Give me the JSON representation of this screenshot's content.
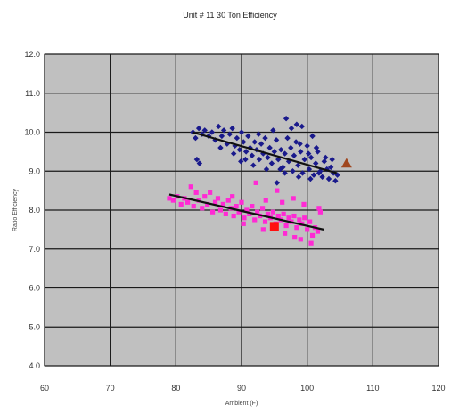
{
  "chart_data": {
    "type": "scatter",
    "title": "Unit # 11 30 Ton Efficiency",
    "xlabel": "Ambient (F)",
    "ylabel": "Ratio Efficiency",
    "xlim": [
      60,
      120
    ],
    "ylim": [
      4.0,
      12.0
    ],
    "x_ticks": [
      "60",
      "70",
      "80",
      "90",
      "100",
      "110",
      "120"
    ],
    "y_ticks": [
      "4.0",
      "5.0",
      "6.0",
      "7.0",
      "8.0",
      "9.0",
      "10.0",
      "11.0",
      "12.0"
    ],
    "grid": true,
    "legend": "none",
    "colors": {
      "plot_background": "#c0c0c0",
      "grid": "#1a1a1a",
      "series_blue": "#1a1a8c",
      "series_magenta": "#ff2ad4",
      "highlight_red": "#ff1010",
      "highlight_triangle": "#a0461e",
      "trendline": "#111111"
    },
    "series": [
      {
        "marker": "diamond",
        "color": "#1a1a8c",
        "points": [
          [
            82.6,
            10.0
          ],
          [
            83.0,
            9.85
          ],
          [
            83.5,
            10.1
          ],
          [
            84.0,
            9.95
          ],
          [
            84.4,
            10.05
          ],
          [
            85.0,
            9.9
          ],
          [
            85.5,
            10.0
          ],
          [
            86.0,
            9.8
          ],
          [
            86.5,
            10.15
          ],
          [
            87.0,
            9.9
          ],
          [
            87.3,
            10.05
          ],
          [
            87.8,
            9.7
          ],
          [
            88.2,
            9.95
          ],
          [
            88.6,
            10.1
          ],
          [
            89.0,
            9.65
          ],
          [
            89.3,
            9.85
          ],
          [
            89.7,
            9.55
          ],
          [
            90.0,
            10.0
          ],
          [
            90.3,
            9.75
          ],
          [
            90.7,
            9.5
          ],
          [
            91.0,
            9.9
          ],
          [
            91.3,
            9.6
          ],
          [
            91.6,
            9.4
          ],
          [
            92.0,
            9.75
          ],
          [
            92.3,
            9.55
          ],
          [
            92.7,
            9.3
          ],
          [
            93.0,
            9.7
          ],
          [
            93.3,
            9.45
          ],
          [
            93.6,
            9.85
          ],
          [
            94.0,
            9.35
          ],
          [
            94.3,
            9.6
          ],
          [
            94.6,
            9.2
          ],
          [
            95.0,
            9.5
          ],
          [
            95.3,
            9.8
          ],
          [
            95.6,
            9.3
          ],
          [
            96.0,
            9.55
          ],
          [
            96.3,
            9.1
          ],
          [
            96.6,
            9.45
          ],
          [
            97.0,
            9.85
          ],
          [
            97.2,
            9.25
          ],
          [
            97.5,
            9.6
          ],
          [
            97.8,
            9.0
          ],
          [
            98.0,
            9.4
          ],
          [
            98.3,
            9.75
          ],
          [
            98.6,
            9.15
          ],
          [
            99.0,
            9.5
          ],
          [
            99.3,
            8.95
          ],
          [
            99.6,
            9.3
          ],
          [
            100.0,
            9.65
          ],
          [
            100.3,
            9.05
          ],
          [
            100.6,
            9.35
          ],
          [
            101.0,
            8.9
          ],
          [
            101.3,
            9.2
          ],
          [
            101.6,
            9.5
          ],
          [
            102.0,
            9.0
          ],
          [
            102.3,
            8.85
          ],
          [
            102.6,
            9.25
          ],
          [
            103.0,
            9.05
          ],
          [
            103.3,
            8.8
          ],
          [
            103.6,
            9.1
          ],
          [
            104.0,
            8.95
          ],
          [
            104.3,
            8.75
          ],
          [
            104.6,
            8.9
          ],
          [
            83.2,
            9.3
          ],
          [
            83.6,
            9.2
          ],
          [
            96.8,
            10.35
          ],
          [
            98.4,
            10.2
          ],
          [
            97.6,
            10.1
          ],
          [
            94.8,
            10.05
          ],
          [
            99.2,
            10.15
          ],
          [
            100.8,
            9.9
          ],
          [
            101.4,
            9.6
          ],
          [
            92.6,
            9.95
          ],
          [
            95.9,
            9.05
          ],
          [
            98.9,
            9.7
          ],
          [
            100.2,
            9.45
          ],
          [
            102.8,
            9.35
          ],
          [
            89.9,
            9.25
          ],
          [
            91.8,
            9.15
          ],
          [
            93.8,
            9.05
          ],
          [
            96.6,
            8.95
          ],
          [
            98.7,
            8.85
          ],
          [
            95.4,
            8.7
          ],
          [
            100.5,
            8.8
          ],
          [
            101.8,
            8.95
          ],
          [
            103.8,
            9.3
          ],
          [
            86.8,
            9.6
          ],
          [
            88.8,
            9.45
          ],
          [
            90.6,
            9.3
          ]
        ]
      },
      {
        "marker": "square",
        "color": "#ff2ad4",
        "points": [
          [
            79.0,
            8.3
          ],
          [
            79.6,
            8.25
          ],
          [
            80.2,
            8.35
          ],
          [
            80.8,
            8.15
          ],
          [
            81.3,
            8.3
          ],
          [
            81.8,
            8.2
          ],
          [
            82.3,
            8.6
          ],
          [
            82.7,
            8.1
          ],
          [
            83.1,
            8.45
          ],
          [
            83.5,
            8.25
          ],
          [
            84.0,
            8.05
          ],
          [
            84.4,
            8.35
          ],
          [
            84.8,
            8.15
          ],
          [
            85.2,
            8.45
          ],
          [
            85.6,
            7.95
          ],
          [
            86.0,
            8.2
          ],
          [
            86.4,
            8.3
          ],
          [
            86.8,
            8.0
          ],
          [
            87.2,
            8.15
          ],
          [
            87.6,
            7.9
          ],
          [
            88.0,
            8.25
          ],
          [
            88.4,
            8.05
          ],
          [
            88.8,
            7.85
          ],
          [
            89.2,
            8.1
          ],
          [
            89.6,
            7.95
          ],
          [
            90.0,
            8.2
          ],
          [
            90.4,
            7.8
          ],
          [
            90.8,
            8.0
          ],
          [
            91.2,
            7.9
          ],
          [
            91.6,
            8.1
          ],
          [
            92.0,
            7.75
          ],
          [
            92.4,
            7.95
          ],
          [
            92.8,
            7.85
          ],
          [
            93.2,
            8.05
          ],
          [
            93.6,
            7.7
          ],
          [
            94.0,
            7.9
          ],
          [
            94.4,
            7.8
          ],
          [
            94.8,
            7.95
          ],
          [
            95.2,
            7.65
          ],
          [
            95.6,
            7.85
          ],
          [
            96.0,
            7.75
          ],
          [
            96.4,
            7.9
          ],
          [
            96.8,
            7.6
          ],
          [
            97.2,
            7.8
          ],
          [
            97.6,
            7.7
          ],
          [
            98.0,
            7.85
          ],
          [
            98.4,
            7.55
          ],
          [
            98.8,
            7.75
          ],
          [
            99.2,
            7.65
          ],
          [
            99.6,
            7.8
          ],
          [
            100.0,
            7.5
          ],
          [
            100.4,
            7.7
          ],
          [
            100.8,
            7.35
          ],
          [
            101.2,
            7.55
          ],
          [
            101.6,
            7.45
          ],
          [
            102.0,
            7.95
          ],
          [
            88.6,
            8.35
          ],
          [
            92.2,
            8.7
          ],
          [
            93.7,
            8.25
          ],
          [
            95.4,
            8.5
          ],
          [
            96.2,
            8.2
          ],
          [
            97.9,
            8.3
          ],
          [
            99.5,
            8.15
          ],
          [
            101.8,
            8.05
          ],
          [
            90.3,
            7.65
          ],
          [
            93.3,
            7.5
          ],
          [
            96.6,
            7.4
          ],
          [
            98.1,
            7.3
          ],
          [
            100.6,
            7.15
          ],
          [
            99.0,
            7.25
          ]
        ]
      },
      {
        "marker": "square",
        "color": "#ff1010",
        "points": [
          [
            95.0,
            7.58
          ]
        ]
      },
      {
        "marker": "triangle",
        "color": "#a0461e",
        "points": [
          [
            106.0,
            9.2
          ]
        ]
      }
    ],
    "trendlines": [
      {
        "color": "#111111",
        "from": [
          82.5,
          10.0
        ],
        "to": [
          104.5,
          8.95
        ]
      },
      {
        "color": "#111111",
        "from": [
          79.0,
          8.4
        ],
        "to": [
          102.5,
          7.5
        ]
      }
    ]
  }
}
